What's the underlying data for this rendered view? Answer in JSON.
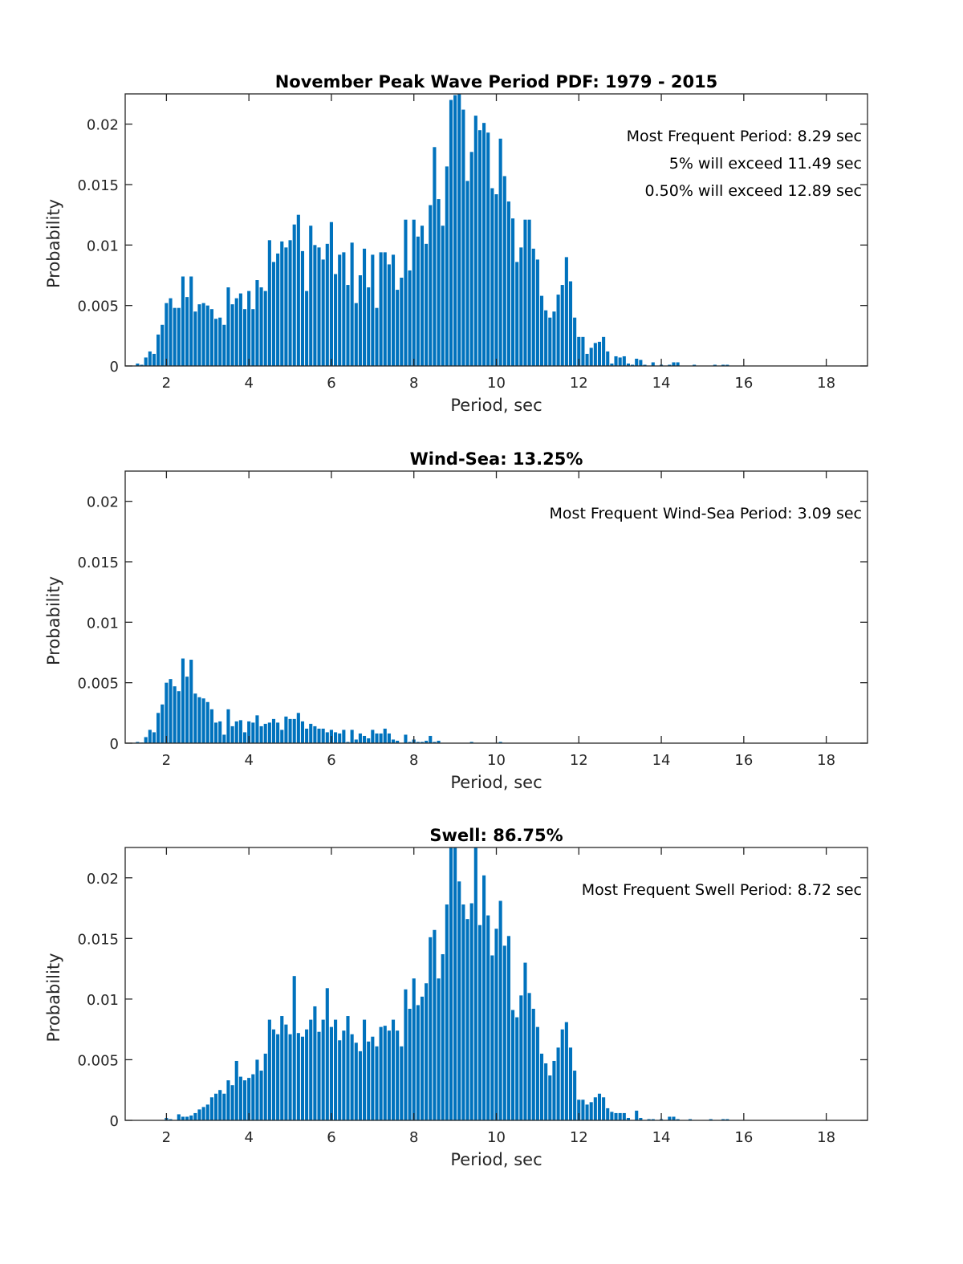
{
  "chart_data": [
    {
      "type": "bar",
      "title": "November Peak Wave Period PDF: 1979 - 2015",
      "xlabel": "Period, sec",
      "ylabel": "Probability",
      "xlim": [
        1,
        19
      ],
      "ylim": [
        0,
        0.0225
      ],
      "xticks": [
        2,
        4,
        6,
        8,
        10,
        12,
        14,
        16,
        18
      ],
      "xtick_labels": [
        "2",
        "4",
        "6",
        "8",
        "10",
        "12",
        "14",
        "16",
        "18"
      ],
      "yticks": [
        0,
        0.005,
        0.01,
        0.015,
        0.02
      ],
      "ytick_labels": [
        "0",
        "0.005",
        "0.01",
        "0.015",
        "0.02"
      ],
      "grid": false,
      "bar_color": "#0072BD",
      "annotations": [
        "Most Frequent Period: 8.29 sec",
        "5% will exceed 11.49 sec",
        "0.50% will exceed 12.89 sec"
      ],
      "x_start": 1.3,
      "x_step": 0.1,
      "values": [
        0.0002,
        0.0001,
        0.0007,
        0.0012,
        0.001,
        0.0026,
        0.0034,
        0.0052,
        0.0056,
        0.0048,
        0.0048,
        0.0074,
        0.0057,
        0.0074,
        0.0045,
        0.0051,
        0.0052,
        0.005,
        0.0047,
        0.0039,
        0.004,
        0.0034,
        0.0065,
        0.0051,
        0.0056,
        0.006,
        0.0047,
        0.0062,
        0.0047,
        0.0071,
        0.0065,
        0.0062,
        0.0104,
        0.0086,
        0.0093,
        0.0103,
        0.0098,
        0.0104,
        0.0117,
        0.0125,
        0.0095,
        0.0062,
        0.0116,
        0.01,
        0.0098,
        0.0088,
        0.0101,
        0.0119,
        0.0076,
        0.0092,
        0.0094,
        0.0067,
        0.0102,
        0.0052,
        0.0075,
        0.0097,
        0.0065,
        0.0092,
        0.0048,
        0.0094,
        0.0094,
        0.0084,
        0.0092,
        0.0063,
        0.0073,
        0.0121,
        0.0079,
        0.0121,
        0.0107,
        0.0116,
        0.0101,
        0.0133,
        0.0181,
        0.0138,
        0.0116,
        0.0165,
        0.022,
        0.0224,
        0.0228,
        0.0212,
        0.0153,
        0.0177,
        0.0207,
        0.0195,
        0.0201,
        0.0193,
        0.0147,
        0.0142,
        0.0188,
        0.0157,
        0.0136,
        0.0122,
        0.0086,
        0.0098,
        0.0121,
        0.0121,
        0.0097,
        0.0088,
        0.0058,
        0.0046,
        0.004,
        0.0045,
        0.0059,
        0.0067,
        0.009,
        0.007,
        0.004,
        0.0024,
        0.0024,
        0.001,
        0.0015,
        0.0019,
        0.002,
        0.0024,
        0.0012,
        0.0002,
        0.0008,
        0.0007,
        0.0008,
        0.0002,
        0.0001,
        0.0006,
        0.0005,
        0.0001,
        0,
        0.0003,
        0,
        0.0001,
        0,
        0.0001,
        0.0003,
        0.0003,
        0,
        0,
        0,
        0.0001,
        0,
        0,
        0,
        0,
        0.0001,
        0,
        0.0001,
        0.0001
      ]
    },
    {
      "type": "bar",
      "title": "Wind-Sea: 13.25%",
      "xlabel": "Period, sec",
      "ylabel": "Probability",
      "xlim": [
        1,
        19
      ],
      "ylim": [
        0,
        0.0225
      ],
      "xticks": [
        2,
        4,
        6,
        8,
        10,
        12,
        14,
        16,
        18
      ],
      "xtick_labels": [
        "2",
        "4",
        "6",
        "8",
        "10",
        "12",
        "14",
        "16",
        "18"
      ],
      "yticks": [
        0,
        0.005,
        0.01,
        0.015,
        0.02
      ],
      "ytick_labels": [
        "0",
        "0.005",
        "0.01",
        "0.015",
        "0.02"
      ],
      "grid": false,
      "bar_color": "#0072BD",
      "annotations": [
        "Most Frequent Wind-Sea Period: 3.09 sec"
      ],
      "x_start": 1.3,
      "x_step": 0.1,
      "values": [
        0.0001,
        5e-05,
        0.0005,
        0.0011,
        0.0009,
        0.0025,
        0.0032,
        0.005,
        0.0053,
        0.0047,
        0.0043,
        0.007,
        0.0055,
        0.0069,
        0.0041,
        0.0038,
        0.0037,
        0.0034,
        0.0028,
        0.0017,
        0.0018,
        0.0007,
        0.0028,
        0.0014,
        0.0018,
        0.0019,
        0.0009,
        0.0018,
        0.0017,
        0.0023,
        0.0014,
        0.0016,
        0.0017,
        0.002,
        0.0017,
        0.0011,
        0.0022,
        0.002,
        0.002,
        0.0025,
        0.0018,
        0.0012,
        0.0016,
        0.0014,
        0.0012,
        0.0012,
        0.0009,
        0.0011,
        0.0009,
        0.0008,
        0.0011,
        0.0001,
        0.0011,
        0.0003,
        0.0008,
        0.0006,
        0.0004,
        0.0011,
        0.0008,
        0.0008,
        0.0012,
        0.0008,
        0.0003,
        0.0002,
        0,
        0.0007,
        0.0001,
        0.0003,
        0.0001,
        0.0001,
        0.0002,
        0.0006,
        0.0001,
        0.0002,
        0,
        0,
        0,
        0,
        0,
        0,
        0,
        0.0001,
        0,
        0,
        0,
        0,
        0,
        0,
        0.0001
      ]
    },
    {
      "type": "bar",
      "title": "Swell: 86.75%",
      "xlabel": "Period, sec",
      "ylabel": "Probability",
      "xlim": [
        1,
        19
      ],
      "ylim": [
        0,
        0.0225
      ],
      "xticks": [
        2,
        4,
        6,
        8,
        10,
        12,
        14,
        16,
        18
      ],
      "xtick_labels": [
        "2",
        "4",
        "6",
        "8",
        "10",
        "12",
        "14",
        "16",
        "18"
      ],
      "yticks": [
        0,
        0.005,
        0.01,
        0.015,
        0.02
      ],
      "ytick_labels": [
        "0",
        "0.005",
        "0.01",
        "0.015",
        "0.02"
      ],
      "grid": false,
      "bar_color": "#0072BD",
      "annotations": [
        "Most Frequent Swell Period: 8.72 sec"
      ],
      "x_start": 2.0,
      "x_step": 0.1,
      "values": [
        0.0002,
        0.0001,
        0,
        0.0005,
        0.0003,
        0.0003,
        0.0004,
        0.0006,
        0.0009,
        0.0011,
        0.0013,
        0.0019,
        0.0022,
        0.0025,
        0.0022,
        0.0033,
        0.0029,
        0.0049,
        0.0036,
        0.0033,
        0.0035,
        0.0038,
        0.005,
        0.0041,
        0.0055,
        0.0083,
        0.0075,
        0.0071,
        0.0086,
        0.0079,
        0.0071,
        0.0119,
        0.0072,
        0.0069,
        0.0075,
        0.0083,
        0.0094,
        0.0073,
        0.0083,
        0.0109,
        0.0077,
        0.0083,
        0.0066,
        0.0074,
        0.0086,
        0.0071,
        0.0064,
        0.0057,
        0.0083,
        0.0065,
        0.0069,
        0.0061,
        0.0077,
        0.0078,
        0.0074,
        0.0083,
        0.0074,
        0.0061,
        0.0108,
        0.0092,
        0.0117,
        0.0095,
        0.0102,
        0.0113,
        0.0151,
        0.0157,
        0.0117,
        0.0137,
        0.0178,
        0.024,
        0.024,
        0.0197,
        0.0178,
        0.0166,
        0.0179,
        0.024,
        0.0161,
        0.0202,
        0.0169,
        0.0136,
        0.0158,
        0.0181,
        0.0144,
        0.0152,
        0.0091,
        0.0085,
        0.0103,
        0.013,
        0.0105,
        0.0092,
        0.0077,
        0.0055,
        0.0047,
        0.0037,
        0.0049,
        0.006,
        0.0075,
        0.0081,
        0.006,
        0.0041,
        0.0017,
        0.0017,
        0.0013,
        0.0015,
        0.0019,
        0.0022,
        0.0019,
        0.001,
        0.0007,
        0.0006,
        0.0006,
        0.0006,
        0.0002,
        0,
        0.0008,
        0.0002,
        0,
        0.0001,
        0.0001,
        0,
        0.0001,
        0,
        0.0003,
        0.0003,
        0.0001,
        0,
        0,
        0.0001,
        0,
        0,
        0,
        0,
        0.0001,
        0,
        0,
        0.0001,
        0.0001
      ]
    }
  ]
}
